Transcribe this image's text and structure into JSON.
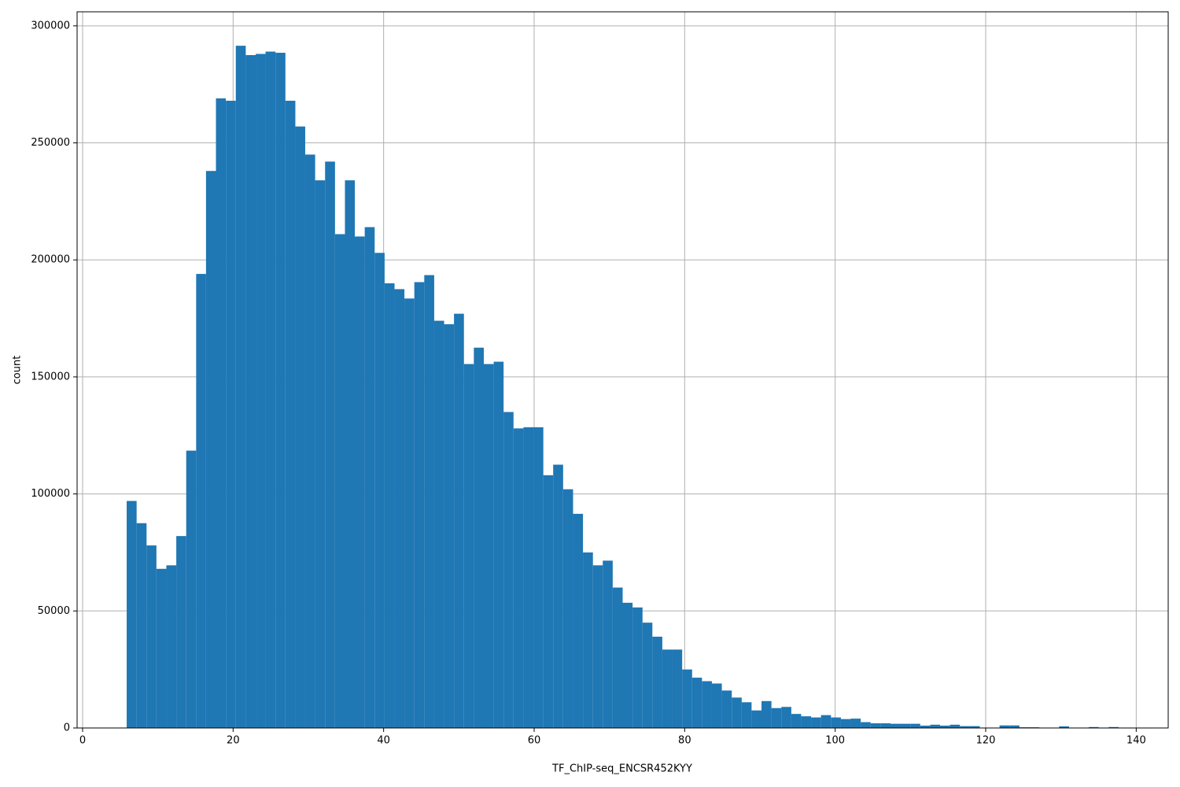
{
  "chart_data": {
    "type": "histogram",
    "x_label": "TF_ChIP-seq_ENCSR452KYY",
    "y_label": "count",
    "color": "#1f77b4",
    "grid": true,
    "bins": [
      5.86,
      7.18,
      8.5,
      9.81,
      11.13,
      12.45,
      13.77,
      15.09,
      16.4,
      17.72,
      19.04,
      20.36,
      21.68,
      23.0,
      24.31,
      25.63,
      26.95,
      28.27,
      29.58,
      30.9,
      32.22,
      33.54,
      34.86,
      36.17,
      37.49,
      38.81,
      40.13,
      41.45,
      42.76,
      44.08,
      45.4,
      46.72,
      48.04,
      49.35,
      50.67,
      51.99,
      53.31,
      54.63,
      55.94,
      57.26,
      58.58,
      59.9,
      61.22,
      62.53,
      63.85,
      65.17,
      66.49,
      67.81,
      69.12,
      70.44,
      71.76,
      73.08,
      74.4,
      75.71,
      77.03,
      78.35,
      79.67,
      80.99,
      82.3,
      83.62,
      84.94,
      86.26,
      87.58,
      88.89,
      90.21,
      91.53,
      92.85,
      94.17,
      95.48,
      96.8,
      98.12,
      99.44,
      100.76,
      102.07,
      103.39,
      104.71,
      106.03,
      107.35,
      108.66,
      109.98,
      111.3,
      112.62,
      113.94,
      115.25,
      116.57,
      117.89,
      119.21,
      120.53,
      121.84,
      123.16,
      124.48,
      125.8,
      127.12,
      128.43,
      129.75,
      131.07,
      132.39,
      133.71,
      135.02,
      136.34,
      137.66
    ],
    "values": [
      97000,
      87500,
      78000,
      68000,
      69500,
      82000,
      118500,
      194000,
      238000,
      269000,
      268000,
      291500,
      287500,
      288000,
      289000,
      288500,
      268000,
      257000,
      245000,
      234000,
      242000,
      211000,
      234000,
      210000,
      214000,
      203000,
      190000,
      187500,
      183500,
      190500,
      193500,
      174000,
      172500,
      177000,
      155500,
      162500,
      155500,
      156500,
      135000,
      128000,
      128500,
      128500,
      108000,
      112500,
      102000,
      91500,
      75000,
      69500,
      71500,
      60000,
      53500,
      51500,
      45000,
      39000,
      33500,
      33500,
      25000,
      21500,
      20000,
      19000,
      16000,
      13000,
      11000,
      7500,
      11500,
      8500,
      9000,
      6000,
      5000,
      4500,
      5500,
      4500,
      3800,
      4000,
      2500,
      2000,
      2000,
      1800,
      1800,
      1800,
      1000,
      1400,
      1000,
      1400,
      800,
      800,
      0,
      0,
      1100,
      1100,
      300,
      300,
      0,
      0,
      700,
      0,
      0,
      400,
      0,
      400
    ],
    "xlim": [
      -0.73,
      144.25
    ],
    "ylim": [
      0,
      306000
    ],
    "xticks": [
      0,
      20,
      40,
      60,
      80,
      100,
      120,
      140
    ],
    "yticks": [
      0,
      50000,
      100000,
      150000,
      200000,
      250000,
      300000
    ]
  }
}
